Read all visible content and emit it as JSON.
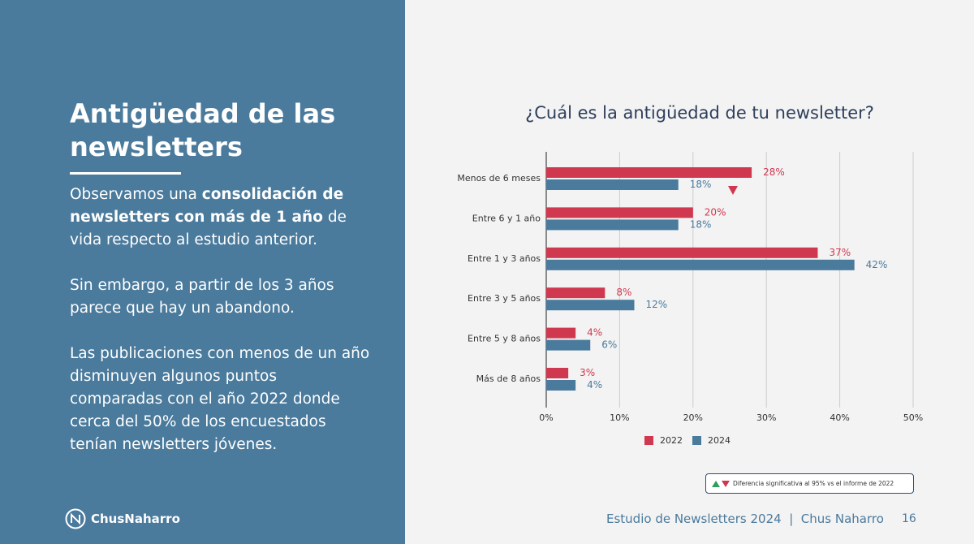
{
  "slide": {
    "heading": "Antigüedad de las newsletters",
    "paragraphs": [
      [
        {
          "text": "Observamos una "
        },
        {
          "text": "consolidación de newsletters con más de 1 año",
          "bold": true
        },
        {
          "text": " de vida respecto al estudio anterior."
        }
      ],
      [
        {
          "text": "Sin embargo, a partir de los 3 años parece que hay un abandono."
        }
      ],
      [
        {
          "text": "Las publicaciones con menos de un año disminuyen algunos puntos comparadas con el año 2022 donde cerca del 50% de los encuestados tenían newsletters jóvenes."
        }
      ]
    ],
    "logo": "ChusNaharro",
    "note": "Diferencia significativa al 95% vs el informe de 2022",
    "footer": "Estudio de Newsletters 2024  |  Chus Naharro",
    "page": "16"
  },
  "chart_data": {
    "type": "hbar",
    "title": "¿Cuál es la antigüedad de tu newsletter?",
    "categories": [
      "Menos de 6 meses",
      "Entre 6 y 1 año",
      "Entre 1 y 3 años",
      "Entre 3 y 5 años",
      "Entre 5 y 8 años",
      "Más de 8 años"
    ],
    "series": [
      {
        "name": "2022",
        "color": "#d0384f",
        "values": [
          28,
          20,
          37,
          8,
          4,
          3
        ],
        "value_labels": [
          "28%",
          "20%",
          "37%",
          "8%",
          "4%",
          "3%"
        ]
      },
      {
        "name": "2024",
        "color": "#4a7a9c",
        "values": [
          18,
          18,
          42,
          12,
          6,
          4
        ],
        "value_labels": [
          "18%",
          "18%",
          "42%",
          "12%",
          "6%",
          "4%"
        ]
      }
    ],
    "xlim": [
      0,
      50
    ],
    "xticks": [
      {
        "value": 0,
        "label": "0%"
      },
      {
        "value": 10,
        "label": "10%"
      },
      {
        "value": 20,
        "label": "20%"
      },
      {
        "value": 30,
        "label": "30%"
      },
      {
        "value": 40,
        "label": "40%"
      },
      {
        "value": 50,
        "label": "50%"
      }
    ],
    "grid": true,
    "legend": "bottom"
  }
}
